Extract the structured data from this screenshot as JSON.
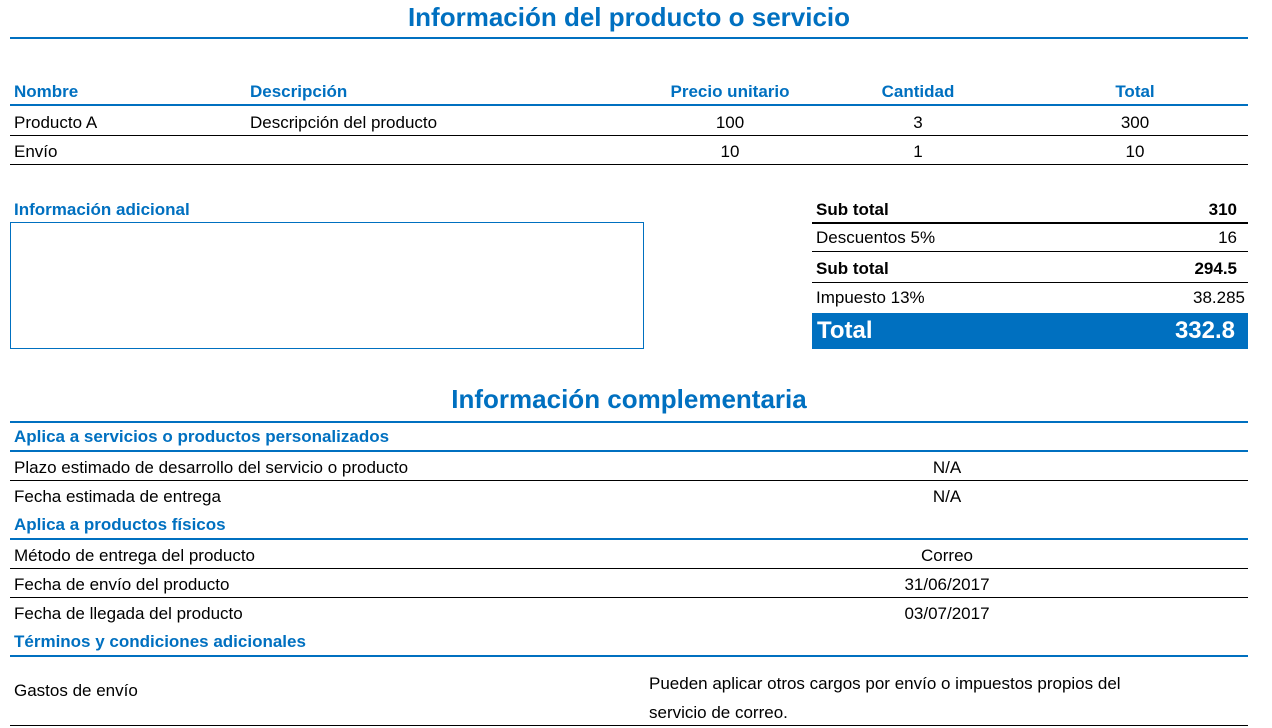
{
  "title": "Información del producto o servicio",
  "columns": {
    "name": "Nombre",
    "description": "Descripción",
    "unit_price": "Precio unitario",
    "quantity": "Cantidad",
    "total": "Total"
  },
  "items": [
    {
      "name": "Producto A",
      "description": "Descripción del producto",
      "unit_price": "100",
      "quantity": "3",
      "total": "300"
    },
    {
      "name": "Envío",
      "description": "",
      "unit_price": "10",
      "quantity": "1",
      "total": "10"
    }
  ],
  "additional_info_label": "Información adicional",
  "summary": {
    "subtotal1_label": "Sub total",
    "subtotal1_value": "310",
    "discount_label": "Descuentos 5%",
    "discount_value": "16",
    "subtotal2_label": "Sub total",
    "subtotal2_value": "294.5",
    "tax_label": "Impuesto 13%",
    "tax_value": "38.285",
    "total_label": "Total",
    "total_value": "332.8"
  },
  "complementary": {
    "title": "Información complementaria",
    "section1": "Aplica a servicios o productos personalizados",
    "rows1": [
      {
        "label": "Plazo estimado de desarrollo del servicio o producto",
        "value": "N/A"
      },
      {
        "label": "Fecha estimada de entrega",
        "value": "N/A"
      }
    ],
    "section2": "Aplica a productos físicos",
    "rows2": [
      {
        "label": "Método de entrega del producto",
        "value": "Correo"
      },
      {
        "label": "Fecha de envío del producto",
        "value": "31/06/2017"
      },
      {
        "label": "Fecha de llegada del producto",
        "value": "03/07/2017"
      }
    ],
    "section3": "Términos y condiciones adicionales",
    "terms": {
      "label": "Gastos de envío",
      "line1": "Pueden aplicar otros cargos por envío o impuestos propios del",
      "line2": "servicio de correo."
    }
  },
  "colors": {
    "accent": "#0070C0"
  }
}
